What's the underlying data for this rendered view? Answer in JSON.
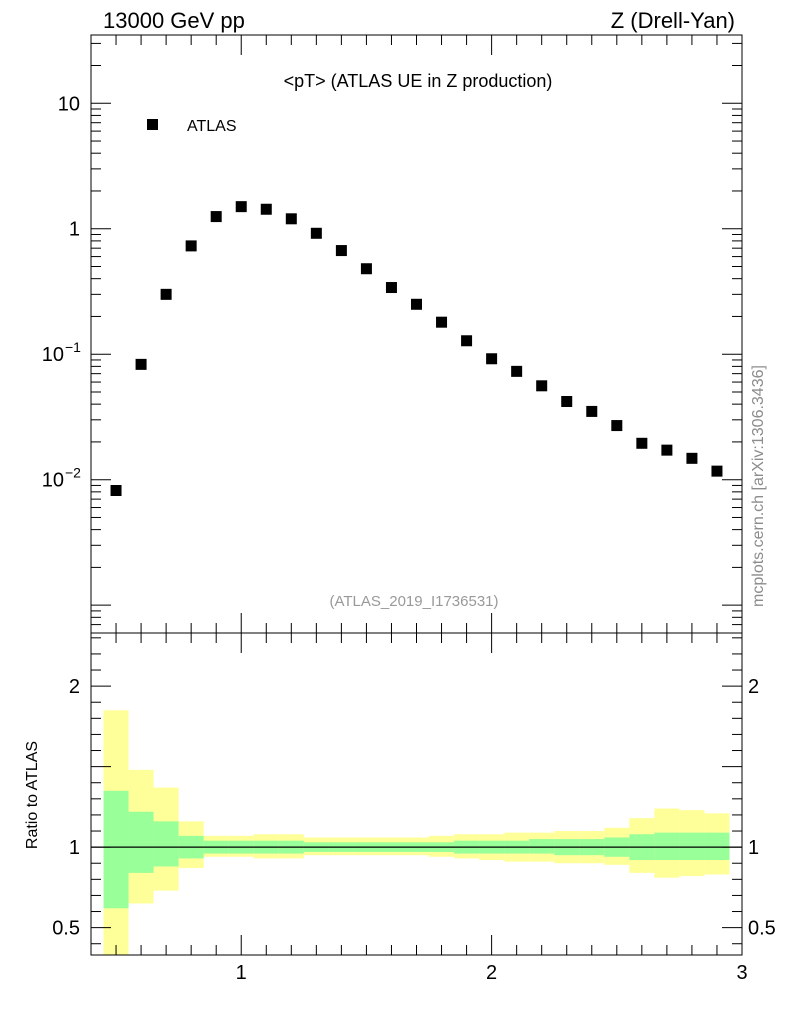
{
  "header": {
    "left": "13000 GeV pp",
    "right": "Z (Drell-Yan)"
  },
  "side_label": "mcplots.cern.ch [arXiv:1306.3436]",
  "chart_data": [
    {
      "type": "scatter",
      "title": "<pT> (ATLAS UE in Z production)",
      "analysis_tag": "(ATLAS_2019_I1736531)",
      "yscale": "log",
      "xlim": [
        0.4,
        3.0
      ],
      "ylim": [
        0.0006,
        35
      ],
      "yticks": [
        {
          "value": 10,
          "label": "10",
          "exp": ""
        },
        {
          "value": 1,
          "label": "1",
          "exp": ""
        },
        {
          "value": 0.1,
          "label": "10",
          "exp": "−1"
        },
        {
          "value": 0.01,
          "label": "10",
          "exp": "−2"
        }
      ],
      "legend": {
        "position": "top-left",
        "entries": [
          "ATLAS"
        ]
      },
      "series": [
        {
          "name": "ATLAS",
          "marker": "square",
          "color": "#000000",
          "x": [
            0.5,
            0.6,
            0.7,
            0.8,
            0.9,
            1.0,
            1.1,
            1.2,
            1.3,
            1.4,
            1.5,
            1.6,
            1.7,
            1.8,
            1.9,
            2.0,
            2.1,
            2.2,
            2.3,
            2.4,
            2.5,
            2.6,
            2.7,
            2.8,
            2.9
          ],
          "y": [
            0.0082,
            0.083,
            0.3,
            0.73,
            1.25,
            1.5,
            1.43,
            1.2,
            0.92,
            0.67,
            0.48,
            0.34,
            0.25,
            0.18,
            0.128,
            0.092,
            0.073,
            0.056,
            0.042,
            0.035,
            0.027,
            0.0195,
            0.0172,
            0.0148,
            0.0117
          ]
        }
      ]
    },
    {
      "type": "area",
      "ylabel": "Ratio to ATLAS",
      "xlim": [
        0.4,
        3.0
      ],
      "ylim": [
        0.33,
        2.33
      ],
      "xticks": [
        1,
        2,
        3
      ],
      "yticks": [
        {
          "value": 2,
          "label": "2"
        },
        {
          "value": 1,
          "label": "1"
        },
        {
          "value": 0.5,
          "label": "0.5"
        }
      ],
      "reference_line": 1,
      "bands": {
        "colors": {
          "stat": "#99ff99",
          "total": "#ffff99"
        },
        "bins": [
          {
            "x0": 0.45,
            "x1": 0.55,
            "stat": [
              0.62,
              1.35
            ],
            "total": [
              0.33,
              1.85
            ]
          },
          {
            "x0": 0.55,
            "x1": 0.65,
            "stat": [
              0.84,
              1.22
            ],
            "total": [
              0.65,
              1.48
            ]
          },
          {
            "x0": 0.65,
            "x1": 0.75,
            "stat": [
              0.88,
              1.16
            ],
            "total": [
              0.73,
              1.37
            ]
          },
          {
            "x0": 0.75,
            "x1": 0.85,
            "stat": [
              0.93,
              1.07
            ],
            "total": [
              0.87,
              1.16
            ]
          },
          {
            "x0": 0.85,
            "x1": 0.95,
            "stat": [
              0.96,
              1.04
            ],
            "total": [
              0.94,
              1.07
            ]
          },
          {
            "x0": 0.95,
            "x1": 1.05,
            "stat": [
              0.96,
              1.04
            ],
            "total": [
              0.94,
              1.07
            ]
          },
          {
            "x0": 1.05,
            "x1": 1.15,
            "stat": [
              0.96,
              1.04
            ],
            "total": [
              0.93,
              1.08
            ]
          },
          {
            "x0": 1.15,
            "x1": 1.25,
            "stat": [
              0.96,
              1.04
            ],
            "total": [
              0.93,
              1.08
            ]
          },
          {
            "x0": 1.25,
            "x1": 1.35,
            "stat": [
              0.97,
              1.03
            ],
            "total": [
              0.95,
              1.06
            ]
          },
          {
            "x0": 1.35,
            "x1": 1.45,
            "stat": [
              0.97,
              1.03
            ],
            "total": [
              0.95,
              1.06
            ]
          },
          {
            "x0": 1.45,
            "x1": 1.55,
            "stat": [
              0.97,
              1.03
            ],
            "total": [
              0.95,
              1.06
            ]
          },
          {
            "x0": 1.55,
            "x1": 1.65,
            "stat": [
              0.97,
              1.03
            ],
            "total": [
              0.95,
              1.06
            ]
          },
          {
            "x0": 1.65,
            "x1": 1.75,
            "stat": [
              0.97,
              1.03
            ],
            "total": [
              0.95,
              1.06
            ]
          },
          {
            "x0": 1.75,
            "x1": 1.85,
            "stat": [
              0.97,
              1.03
            ],
            "total": [
              0.94,
              1.07
            ]
          },
          {
            "x0": 1.85,
            "x1": 1.95,
            "stat": [
              0.96,
              1.04
            ],
            "total": [
              0.93,
              1.08
            ]
          },
          {
            "x0": 1.95,
            "x1": 2.05,
            "stat": [
              0.96,
              1.04
            ],
            "total": [
              0.92,
              1.08
            ]
          },
          {
            "x0": 2.05,
            "x1": 2.15,
            "stat": [
              0.96,
              1.04
            ],
            "total": [
              0.91,
              1.09
            ]
          },
          {
            "x0": 2.15,
            "x1": 2.25,
            "stat": [
              0.96,
              1.05
            ],
            "total": [
              0.91,
              1.09
            ]
          },
          {
            "x0": 2.25,
            "x1": 2.35,
            "stat": [
              0.95,
              1.05
            ],
            "total": [
              0.9,
              1.1
            ]
          },
          {
            "x0": 2.35,
            "x1": 2.45,
            "stat": [
              0.95,
              1.05
            ],
            "total": [
              0.9,
              1.1
            ]
          },
          {
            "x0": 2.45,
            "x1": 2.55,
            "stat": [
              0.94,
              1.06
            ],
            "total": [
              0.89,
              1.12
            ]
          },
          {
            "x0": 2.55,
            "x1": 2.65,
            "stat": [
              0.92,
              1.08
            ],
            "total": [
              0.84,
              1.18
            ]
          },
          {
            "x0": 2.65,
            "x1": 2.75,
            "stat": [
              0.92,
              1.09
            ],
            "total": [
              0.81,
              1.24
            ]
          },
          {
            "x0": 2.75,
            "x1": 2.85,
            "stat": [
              0.92,
              1.09
            ],
            "total": [
              0.82,
              1.23
            ]
          },
          {
            "x0": 2.85,
            "x1": 2.95,
            "stat": [
              0.92,
              1.09
            ],
            "total": [
              0.83,
              1.21
            ]
          }
        ]
      }
    }
  ]
}
